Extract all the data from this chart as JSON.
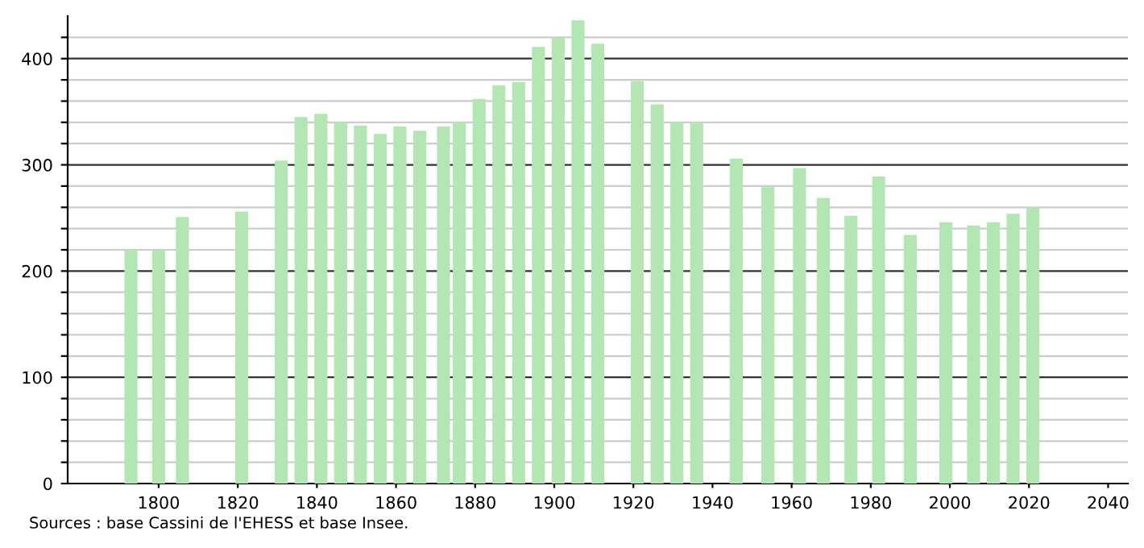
{
  "chart_data": {
    "type": "bar",
    "x": [
      1793,
      1800,
      1806,
      1821,
      1831,
      1836,
      1841,
      1846,
      1851,
      1856,
      1861,
      1866,
      1872,
      1876,
      1881,
      1886,
      1891,
      1896,
      1901,
      1906,
      1911,
      1921,
      1926,
      1931,
      1936,
      1946,
      1954,
      1962,
      1968,
      1975,
      1982,
      1990,
      1999,
      2006,
      2011,
      2016,
      2021
    ],
    "values": [
      220,
      220,
      251,
      256,
      304,
      345,
      348,
      340,
      337,
      329,
      336,
      332,
      336,
      340,
      362,
      375,
      378,
      411,
      420,
      436,
      414,
      379,
      357,
      340,
      340,
      306,
      279,
      297,
      269,
      252,
      289,
      234,
      246,
      243,
      246,
      254,
      260
    ],
    "color": "#b3e6b3",
    "xlim": [
      1777,
      2045
    ],
    "xticks": [
      1800,
      1820,
      1840,
      1860,
      1880,
      1900,
      1920,
      1940,
      1960,
      1980,
      2000,
      2020,
      2040
    ],
    "ylim": [
      0,
      440
    ],
    "yticks": [
      0,
      {
        "value": 20,
        "label": null
      },
      {
        "value": 40,
        "label": null
      },
      {
        "value": 60,
        "label": null
      },
      {
        "value": 80,
        "label": null
      },
      100,
      {
        "value": 120,
        "label": null
      },
      {
        "value": 140,
        "label": null
      },
      {
        "value": 160,
        "label": null
      },
      {
        "value": 180,
        "label": null
      },
      200,
      {
        "value": 220,
        "label": null
      },
      {
        "value": 240,
        "label": null
      },
      {
        "value": 260,
        "label": null
      },
      {
        "value": 280,
        "label": null
      },
      300,
      {
        "value": 320,
        "label": null
      },
      {
        "value": 340,
        "label": null
      },
      {
        "value": 360,
        "label": null
      },
      {
        "value": 380,
        "label": null
      },
      400,
      {
        "value": 420,
        "label": null
      }
    ],
    "grid": "y",
    "annotations": [
      "Sources : base Cassini de l'EHESS et base Insee."
    ]
  }
}
